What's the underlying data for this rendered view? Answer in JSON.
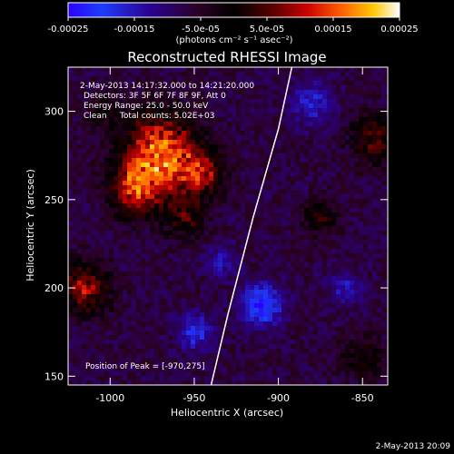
{
  "colorbar": {
    "ticks": [
      "-0.00025",
      "-0.00015",
      "-5.0e-05",
      "5.0e-05",
      "0.00015",
      "0.00025"
    ],
    "tick_values": [
      -0.00025,
      -0.00015,
      -5e-05,
      5e-05,
      0.00015,
      0.00025
    ],
    "range": [
      -0.00025,
      0.00025
    ],
    "units_label": "(photons cm⁻² s⁻¹ asec⁻²)"
  },
  "chart_data": {
    "type": "heatmap",
    "title": "Reconstructed RHESSI Image",
    "xlabel": "Heliocentric X (arcsec)",
    "ylabel": "Heliocentric Y (arcsec)",
    "xlim": [
      -1025,
      -835
    ],
    "ylim": [
      145,
      325
    ],
    "xticks": [
      -1000,
      -950,
      -900,
      -850
    ],
    "yticks": [
      150,
      200,
      250,
      300
    ],
    "xtick_labels": [
      "-1000",
      "-950",
      "-900",
      "-850"
    ],
    "ytick_labels": [
      "150",
      "200",
      "250",
      "300"
    ],
    "annotations": [
      "2-May-2013 14:17:32.000 to 14:21:20.000",
      "Detectors: 3F 5F 6F 7F 8F 9F, Att 0",
      "Energy Range: 25.0 - 50.0 keV",
      "Clean     Total counts: 5.02E+03"
    ],
    "peak_label": "Position of Peak = [-970,275]",
    "peak": {
      "x": -970,
      "y": 275
    },
    "limb_curve": [
      [
        -940,
        145
      ],
      [
        -930,
        185
      ],
      [
        -915,
        240
      ],
      [
        -900,
        290
      ],
      [
        -892,
        325
      ]
    ],
    "hot_spots": [
      {
        "x": -970,
        "y": 275,
        "r": 22,
        "value": 0.00025
      },
      {
        "x": -985,
        "y": 255,
        "r": 14,
        "value": 0.00016
      },
      {
        "x": -945,
        "y": 265,
        "r": 12,
        "value": 0.00014
      },
      {
        "x": -955,
        "y": 240,
        "r": 12,
        "value": 0.0001
      },
      {
        "x": -1015,
        "y": 200,
        "r": 14,
        "value": 0.00016
      },
      {
        "x": -842,
        "y": 285,
        "r": 14,
        "value": 0.00012
      },
      {
        "x": -875,
        "y": 240,
        "r": 10,
        "value": 9e-05
      },
      {
        "x": -1005,
        "y": 300,
        "r": 10,
        "value": 6e-05
      },
      {
        "x": -850,
        "y": 160,
        "r": 12,
        "value": 8e-05
      }
    ],
    "cold_spots": [
      {
        "x": -910,
        "y": 190,
        "r": 12,
        "value": -0.00016
      },
      {
        "x": -950,
        "y": 175,
        "r": 10,
        "value": -0.00012
      },
      {
        "x": -880,
        "y": 305,
        "r": 12,
        "value": -0.0001
      },
      {
        "x": -860,
        "y": 200,
        "r": 10,
        "value": -8e-05
      },
      {
        "x": -935,
        "y": 215,
        "r": 9,
        "value": -7e-05
      }
    ],
    "grid": false
  },
  "footer": {
    "timestamp": "2-May-2013 20:09"
  }
}
